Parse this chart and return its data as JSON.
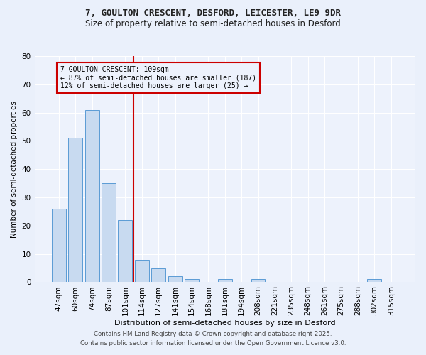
{
  "title_line1": "7, GOULTON CRESCENT, DESFORD, LEICESTER, LE9 9DR",
  "title_line2": "Size of property relative to semi-detached houses in Desford",
  "xlabel": "Distribution of semi-detached houses by size in Desford",
  "ylabel": "Number of semi-detached properties",
  "categories": [
    "47sqm",
    "60sqm",
    "74sqm",
    "87sqm",
    "101sqm",
    "114sqm",
    "127sqm",
    "141sqm",
    "154sqm",
    "168sqm",
    "181sqm",
    "194sqm",
    "208sqm",
    "221sqm",
    "235sqm",
    "248sqm",
    "261sqm",
    "275sqm",
    "288sqm",
    "302sqm",
    "315sqm"
  ],
  "values": [
    26,
    51,
    61,
    35,
    22,
    8,
    5,
    2,
    1,
    0,
    1,
    0,
    1,
    0,
    0,
    0,
    0,
    0,
    0,
    1,
    0
  ],
  "bar_color": "#c8daf0",
  "bar_edge_color": "#5b9bd5",
  "vline_color": "#cc0000",
  "annotation_title": "7 GOULTON CRESCENT: 109sqm",
  "annotation_line1": "← 87% of semi-detached houses are smaller (187)",
  "annotation_line2": "12% of semi-detached houses are larger (25) →",
  "annotation_box_color": "#cc0000",
  "ylim": [
    0,
    80
  ],
  "yticks": [
    0,
    10,
    20,
    30,
    40,
    50,
    60,
    70,
    80
  ],
  "footer_line1": "Contains HM Land Registry data © Crown copyright and database right 2025.",
  "footer_line2": "Contains public sector information licensed under the Open Government Licence v3.0.",
  "bg_color": "#eaf0fb",
  "plot_bg_color": "#edf2fc"
}
